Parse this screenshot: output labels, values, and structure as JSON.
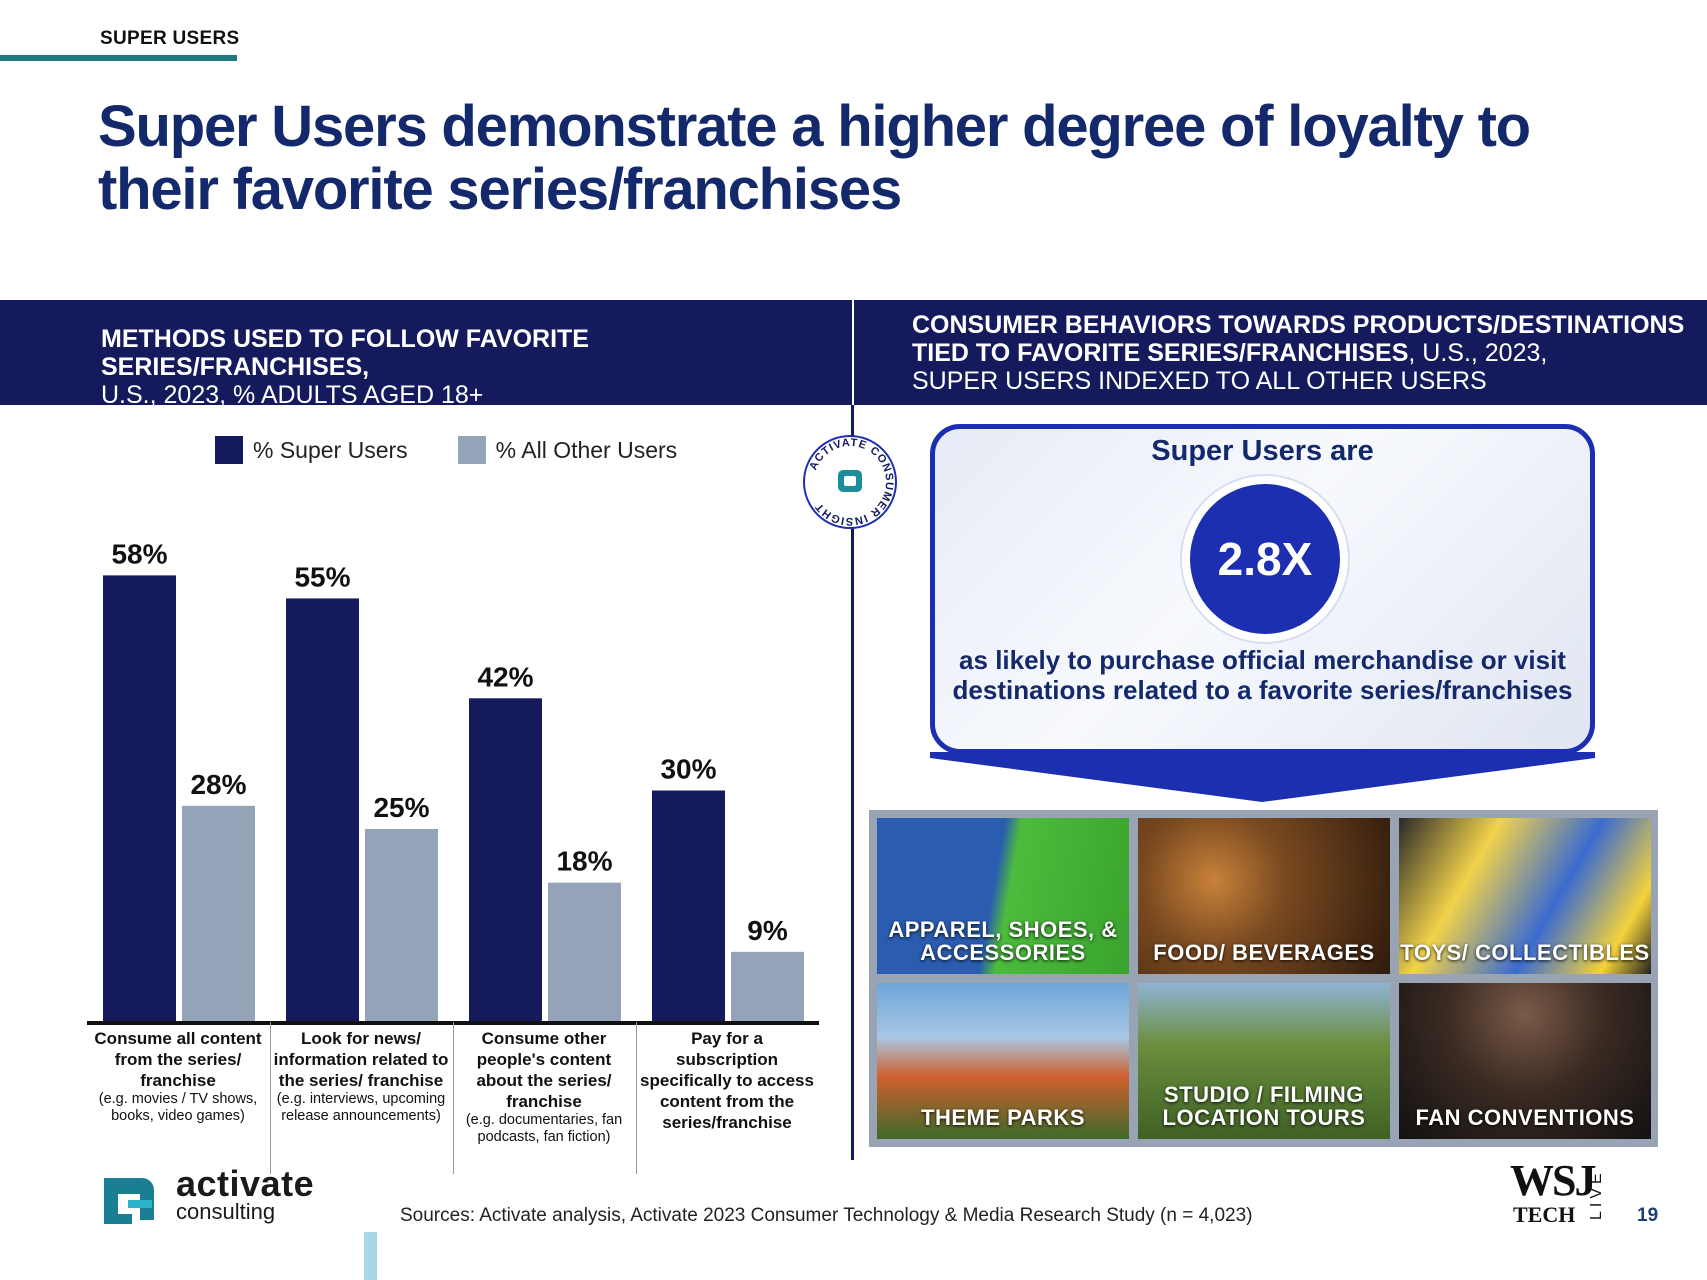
{
  "section_tag": "SUPER USERS",
  "page_title": "Super Users demonstrate a higher degree of loyalty to their favorite series/franchises",
  "left_panel": {
    "heading_bold": "METHODS USED TO FOLLOW FAVORITE SERIES/FRANCHISES,",
    "heading_rest": "U.S., 2023, % ADULTS AGED 18+"
  },
  "right_panel": {
    "heading_bold": "CONSUMER BEHAVIORS TOWARDS PRODUCTS/DESTINATIONS TIED TO FAVORITE SERIES/FRANCHISES",
    "heading_rest": ", U.S., 2023,",
    "heading_line3": "SUPER USERS INDEXED TO ALL OTHER USERS",
    "callout_title": "Super Users are",
    "multiplier": "2.8X",
    "callout_text": "as likely to purchase official merchandise or visit destinations related to a favorite series/franchises",
    "tiles": [
      {
        "label": "APPAREL, SHOES, & ACCESSORIES"
      },
      {
        "label": "FOOD/ BEVERAGES"
      },
      {
        "label": "TOYS/ COLLECTIBLES"
      },
      {
        "label": "THEME PARKS"
      },
      {
        "label": "STUDIO / FILMING LOCATION TOURS"
      },
      {
        "label": "FAN CONVENTIONS"
      }
    ]
  },
  "seal_text": "ACTIVATE CONSUMER INSIGHT",
  "chart_data": {
    "type": "bar",
    "title": "METHODS USED TO FOLLOW FAVORITE SERIES/FRANCHISES, U.S., 2023, % ADULTS AGED 18+",
    "categories": [
      {
        "main": "Consume all content from the series/ franchise",
        "sub": "(e.g. movies / TV shows, books, video games)"
      },
      {
        "main": "Look for news/ information related to the series/ franchise",
        "sub": "(e.g. interviews, upcoming release announcements)"
      },
      {
        "main": "Consume other people's content about the series/ franchise",
        "sub": "(e.g. documentaries, fan podcasts, fan fiction)"
      },
      {
        "main": "Pay for a subscription specifically to access content from the series/franchise",
        "sub": ""
      }
    ],
    "series": [
      {
        "name": "% Super Users",
        "color": "#141a5c",
        "values": [
          58,
          55,
          42,
          30
        ]
      },
      {
        "name": "% All Other Users",
        "color": "#95a3b8",
        "values": [
          28,
          25,
          18,
          9
        ]
      }
    ],
    "value_suffix": "%",
    "ylim": [
      0,
      60
    ],
    "legend_position": "top",
    "grid": false
  },
  "brand": {
    "line1": "activate",
    "line2": "consulting"
  },
  "sources": "Sources: Activate analysis, Activate 2023 Consumer Technology & Media Research Study (n = 4,023)",
  "partner_logo": {
    "line1": "WSJ",
    "line2": "TECH",
    "line3": "LIVE"
  },
  "page_number": "19",
  "colors": {
    "navy": "#141a5c",
    "title_blue": "#14296b",
    "gray_bar": "#95a3b8",
    "royal": "#1c2fb0",
    "teal": "#1f7a80"
  }
}
